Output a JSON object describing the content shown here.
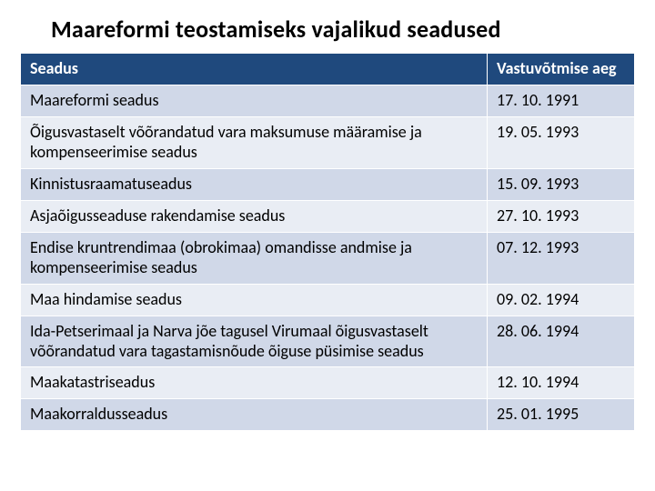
{
  "title": "Maareformi  teostamiseks vajalikud seadused",
  "table": {
    "columns": [
      "Seadus",
      "Vastuvõtmise aeg"
    ],
    "header_bg": "#1f497d",
    "header_fg": "#ffffff",
    "row_alt_bg": [
      "#d0d8e8",
      "#e9edf4"
    ],
    "border_color": "#ffffff",
    "col_widths_pct": [
      76,
      24
    ],
    "rows": [
      [
        "Maareformi seadus",
        "17. 10. 1991"
      ],
      [
        "Õigusvastaselt võõrandatud vara maksumuse määramise ja kompenseerimise seadus",
        "19. 05. 1993"
      ],
      [
        "Kinnistusraamatuseadus",
        "15. 09. 1993"
      ],
      [
        "Asjaõigusseaduse rakendamise seadus",
        "27. 10. 1993"
      ],
      [
        "Endise kruntrendimaa (obrokimaa) omandisse andmise ja kompenseerimise seadus",
        "07. 12. 1993"
      ],
      [
        "Maa hindamise seadus",
        "09. 02. 1994"
      ],
      [
        "Ida-Petserimaal ja Narva jõe tagusel Virumaal õigusvastaselt võõrandatud vara tagastamisnõude õiguse püsimise seadus",
        "28. 06. 1994"
      ],
      [
        "Maakatastriseadus",
        "12. 10. 1994"
      ],
      [
        "Maakorraldusseadus",
        "25. 01. 1995"
      ]
    ]
  }
}
